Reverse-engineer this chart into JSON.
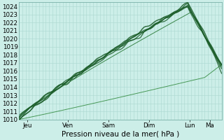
{
  "xlabel": "Pression niveau de la mer( hPa )",
  "ylim": [
    1010,
    1024.5
  ],
  "xlim": [
    0,
    120
  ],
  "yticks": [
    1010,
    1011,
    1012,
    1013,
    1014,
    1015,
    1016,
    1017,
    1018,
    1019,
    1020,
    1021,
    1022,
    1023,
    1024
  ],
  "xtick_positions": [
    5,
    29,
    53,
    77,
    101,
    113
  ],
  "xtick_labels": [
    "Jeu",
    "Ven",
    "Sam",
    "Dim",
    "Lun",
    "Ma"
  ],
  "background_color": "#cceee8",
  "grid_color_major": "#aad8d0",
  "grid_color_minor": "#c0e4de",
  "line_color_dark": "#1a5c28",
  "line_color_med": "#2a7a38",
  "line_color_thin": "#3a9048",
  "xlabel_fontsize": 7.5,
  "tick_fontsize": 6.2
}
